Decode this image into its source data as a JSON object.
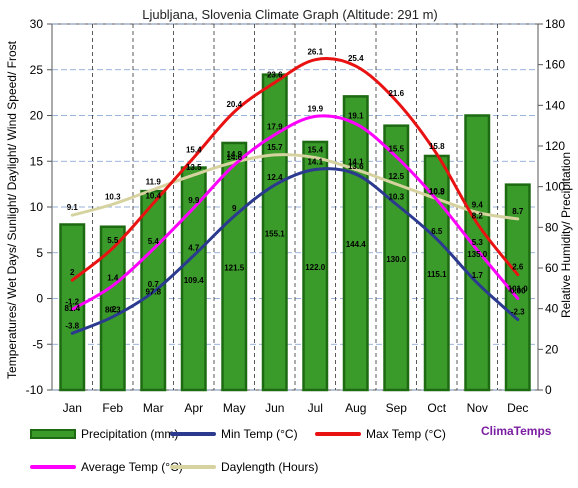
{
  "chart_data": {
    "type": "bar",
    "title": "Ljubljana, Slovenia Climate Graph (Altitude: 291 m)",
    "ylabel_left": "Temperatures/ Wet Days/ Sunlight/ Daylight/ Wind Speed/ Frost",
    "ylabel_right": "Relative Humidity/  Precipitation",
    "ylim_left": [
      -10,
      30
    ],
    "ylim_right": [
      0,
      180
    ],
    "yticks_left": [
      "-10",
      "-5",
      "0",
      "5",
      "10",
      "15",
      "20",
      "25",
      "30"
    ],
    "yticks_right": [
      "0",
      "20",
      "40",
      "60",
      "80",
      "100",
      "120",
      "140",
      "160",
      "180"
    ],
    "categories": [
      "Jan",
      "Feb",
      "Mar",
      "Apr",
      "May",
      "Jun",
      "Jul",
      "Aug",
      "Sep",
      "Oct",
      "Nov",
      "Dec"
    ],
    "grid": true,
    "series": [
      {
        "name": "Precipitation (mm)",
        "type": "bar",
        "axis": "right",
        "values": [
          81.4,
          80.3,
          97.8,
          109.4,
          121.5,
          155.1,
          122.0,
          144.4,
          130.0,
          115.1,
          135.0,
          101.0
        ],
        "labels": [
          "81.4",
          "80.3",
          "97.8",
          "109.4",
          "121.5",
          "155.1",
          "122.0",
          "144.4",
          "130.0",
          "115.1",
          "135.0",
          "101.0"
        ]
      },
      {
        "name": "Min Temp (°C)",
        "type": "line",
        "axis": "left",
        "values": [
          -3.8,
          -2,
          0.7,
          4.7,
          9,
          12.4,
          14.1,
          13.6,
          10.3,
          6.5,
          1.7,
          -2.3
        ],
        "labels": [
          "-3.8",
          "-2",
          "0.7",
          "4.7",
          "9",
          "12.4",
          "14.1",
          "13.6",
          "10.3",
          "6.5",
          "1.7",
          "-2.3"
        ]
      },
      {
        "name": "Max Temp (°C)",
        "type": "line",
        "axis": "left",
        "values": [
          2,
          5.5,
          10.4,
          15.4,
          20.4,
          23.6,
          26.1,
          25.4,
          21.6,
          15.8,
          8.2,
          2.6
        ],
        "labels": [
          "2",
          "5.5",
          "10.4",
          "15.4",
          "20.4",
          "23.6",
          "26.1",
          "25.4",
          "21.6",
          "15.8",
          "8.2",
          "2.6"
        ]
      },
      {
        "name": "Average Temp (°C)",
        "type": "line",
        "axis": "left",
        "values": [
          -1.2,
          1.4,
          5.4,
          9.9,
          14.6,
          17.9,
          19.9,
          19.1,
          15.5,
          10.8,
          5.3,
          0.0
        ],
        "labels": [
          "-1.2",
          "1.4",
          "5.4",
          "9.9",
          "14.6",
          "17.9",
          "19.9",
          "19.1",
          "15.5",
          "10.8",
          "5.3",
          "0.00"
        ]
      },
      {
        "name": "Daylength (Hours)",
        "type": "line",
        "axis": "left",
        "values": [
          9.1,
          10.3,
          11.9,
          13.5,
          14.9,
          15.7,
          15.4,
          14.1,
          12.5,
          10.9,
          9.4,
          8.7
        ],
        "labels": [
          "9.1",
          "10.3",
          "11.9",
          "13.5",
          "14.9",
          "15.7",
          "15.4",
          "14.1",
          "12.5",
          "10.9",
          "9.4",
          "8.7"
        ]
      }
    ]
  },
  "brand": "ClimaTemps",
  "colors": {
    "bar_fill": "#3a9a2a",
    "bar_edge": "#1d6a12",
    "min": "#2b3a8f",
    "max": "#e81212",
    "avg": "#ff00ff",
    "daylength": "#d6d3a0",
    "brand": "#7b1fa2"
  }
}
